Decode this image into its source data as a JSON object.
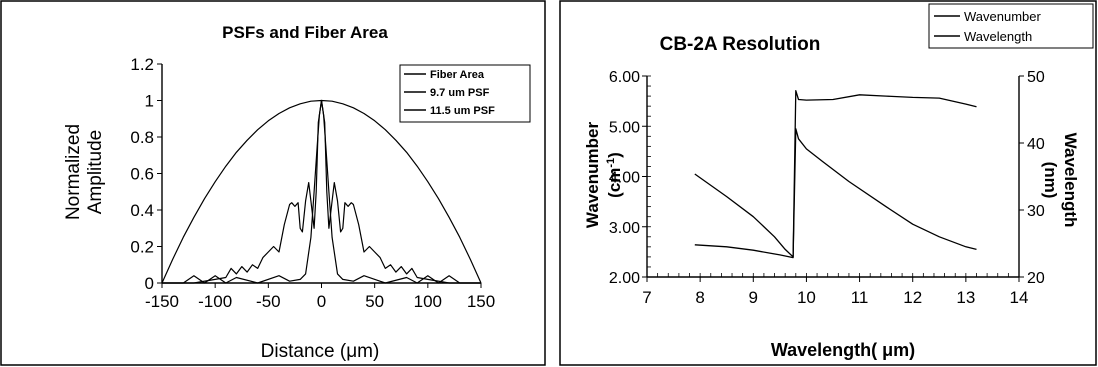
{
  "chart_data": [
    {
      "type": "line",
      "title": "PSFs and Fiber Area",
      "xlabel": "Distance (μm)",
      "ylabel_line1": "Normalized",
      "ylabel_line2": "Amplitude",
      "xlim": [
        -150,
        150
      ],
      "ylim": [
        0,
        1.2
      ],
      "xticks": [
        "-150",
        "-100",
        "-50",
        "0",
        "50",
        "100",
        "150"
      ],
      "yticks": [
        "0",
        "0.2",
        "0.4",
        "0.6",
        "0.8",
        "1",
        "1.2"
      ],
      "legend_position": "top-right",
      "series": [
        {
          "name": "Fiber Area",
          "x": [
            -150,
            -140,
            -130,
            -120,
            -110,
            -100,
            -90,
            -80,
            -70,
            -60,
            -50,
            -40,
            -30,
            -20,
            -10,
            0,
            10,
            20,
            30,
            40,
            50,
            60,
            70,
            80,
            90,
            100,
            110,
            120,
            130,
            140,
            150
          ],
          "y": [
            0,
            0.129,
            0.251,
            0.36,
            0.462,
            0.555,
            0.64,
            0.716,
            0.782,
            0.84,
            0.889,
            0.929,
            0.96,
            0.982,
            0.996,
            1,
            0.996,
            0.982,
            0.96,
            0.929,
            0.889,
            0.84,
            0.782,
            0.716,
            0.64,
            0.555,
            0.462,
            0.36,
            0.251,
            0.129,
            0
          ]
        },
        {
          "name": "9.7 um PSF",
          "x": [
            -150,
            -120,
            -100,
            -90,
            -85,
            -80,
            -75,
            -70,
            -65,
            -60,
            -55,
            -50,
            -45,
            -40,
            -35,
            -30,
            -28,
            -25,
            -22,
            -20,
            -18,
            -15,
            -12,
            -10,
            -7,
            -5,
            -3,
            0,
            3,
            5,
            7,
            10,
            12,
            15,
            18,
            20,
            22,
            25,
            28,
            30,
            35,
            40,
            45,
            50,
            55,
            60,
            65,
            70,
            75,
            80,
            85,
            90,
            100,
            120,
            150
          ],
          "y": [
            0,
            0,
            0.02,
            0.03,
            0.08,
            0.05,
            0.09,
            0.06,
            0.1,
            0.08,
            0.14,
            0.17,
            0.2,
            0.17,
            0.32,
            0.43,
            0.44,
            0.42,
            0.44,
            0.3,
            0.28,
            0.45,
            0.55,
            0.45,
            0.3,
            0.5,
            0.88,
            1,
            0.88,
            0.5,
            0.3,
            0.45,
            0.55,
            0.45,
            0.28,
            0.3,
            0.44,
            0.42,
            0.44,
            0.43,
            0.32,
            0.17,
            0.2,
            0.17,
            0.14,
            0.08,
            0.1,
            0.06,
            0.09,
            0.05,
            0.08,
            0.03,
            0.02,
            0,
            0
          ]
        },
        {
          "name": "11.5 um PSF",
          "x": [
            -150,
            -130,
            -120,
            -110,
            -100,
            -90,
            -80,
            -60,
            -40,
            -30,
            -20,
            -15,
            -10,
            -7,
            -4,
            -2,
            0,
            2,
            4,
            7,
            10,
            15,
            20,
            30,
            40,
            60,
            80,
            90,
            100,
            110,
            120,
            130,
            150
          ],
          "y": [
            0,
            0,
            0.04,
            0,
            0.04,
            0,
            0.03,
            0,
            0.04,
            0.01,
            0.02,
            0.05,
            0.25,
            0.5,
            0.75,
            0.92,
            1,
            0.92,
            0.75,
            0.5,
            0.25,
            0.05,
            0.02,
            0.01,
            0.04,
            0,
            0.03,
            0,
            0.04,
            0,
            0.04,
            0,
            0
          ]
        }
      ]
    },
    {
      "type": "line",
      "title": "CB-2A Resolution",
      "xlabel": "Wavelength( μm)",
      "ylabel_left": "Wavenumber",
      "ylabel_left_unit_base": "(cm",
      "ylabel_left_unit_exp": "-1",
      "ylabel_left_unit_close": ")",
      "ylabel_right_line1": "Wavelength",
      "ylabel_right_line2": "(nm)",
      "xlim": [
        7,
        14
      ],
      "ylim_left": [
        2,
        6
      ],
      "ylim_right": [
        20,
        50
      ],
      "xticks": [
        "7",
        "8",
        "9",
        "10",
        "11",
        "12",
        "13",
        "14"
      ],
      "yticks_left": [
        "2.00",
        "3.00",
        "4.00",
        "5.00",
        "6.00"
      ],
      "yticks_right": [
        "20",
        "30",
        "40",
        "50"
      ],
      "legend_position": "top-right",
      "series": [
        {
          "name": "Wavenumber",
          "axis": "left",
          "x": [
            7.9,
            8.5,
            9.0,
            9.4,
            9.6,
            9.75,
            9.8,
            9.85,
            10.0,
            10.3,
            10.8,
            11.5,
            12.0,
            12.5,
            13.0,
            13.2
          ],
          "y": [
            4.05,
            3.6,
            3.2,
            2.8,
            2.55,
            2.4,
            4.95,
            4.75,
            4.55,
            4.3,
            3.9,
            3.4,
            3.05,
            2.8,
            2.6,
            2.55
          ]
        },
        {
          "name": "Wavelength",
          "axis": "right",
          "x": [
            7.9,
            8.5,
            9.0,
            9.5,
            9.75,
            9.8,
            9.85,
            10.0,
            10.5,
            11.0,
            11.5,
            12.0,
            12.5,
            13.0,
            13.2
          ],
          "y": [
            24.8,
            24.5,
            24.0,
            23.3,
            22.9,
            47.8,
            46.5,
            46.4,
            46.5,
            47.2,
            47.0,
            46.8,
            46.7,
            45.8,
            45.4
          ]
        }
      ]
    }
  ]
}
